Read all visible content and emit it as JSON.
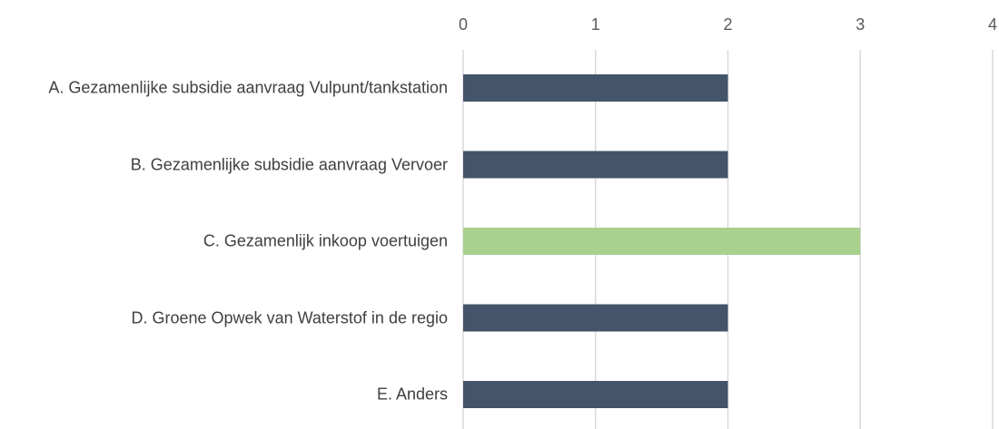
{
  "chart_data": {
    "type": "bar",
    "orientation": "horizontal",
    "categories": [
      "A. Gezamenlijke subsidie aanvraag Vulpunt/tankstation",
      "B. Gezamenlijke subsidie aanvraag Vervoer",
      "C. Gezamenlijk inkoop voertuigen",
      "D. Groene Opwek van Waterstof in de regio",
      "E. Anders"
    ],
    "values": [
      2,
      2,
      3,
      2,
      2
    ],
    "colors": [
      "#44546a",
      "#44546a",
      "#a9d18e",
      "#44546a",
      "#44546a"
    ],
    "xlim": [
      0,
      4
    ],
    "xticks": [
      0,
      1,
      2,
      3,
      4
    ],
    "grid": true
  }
}
